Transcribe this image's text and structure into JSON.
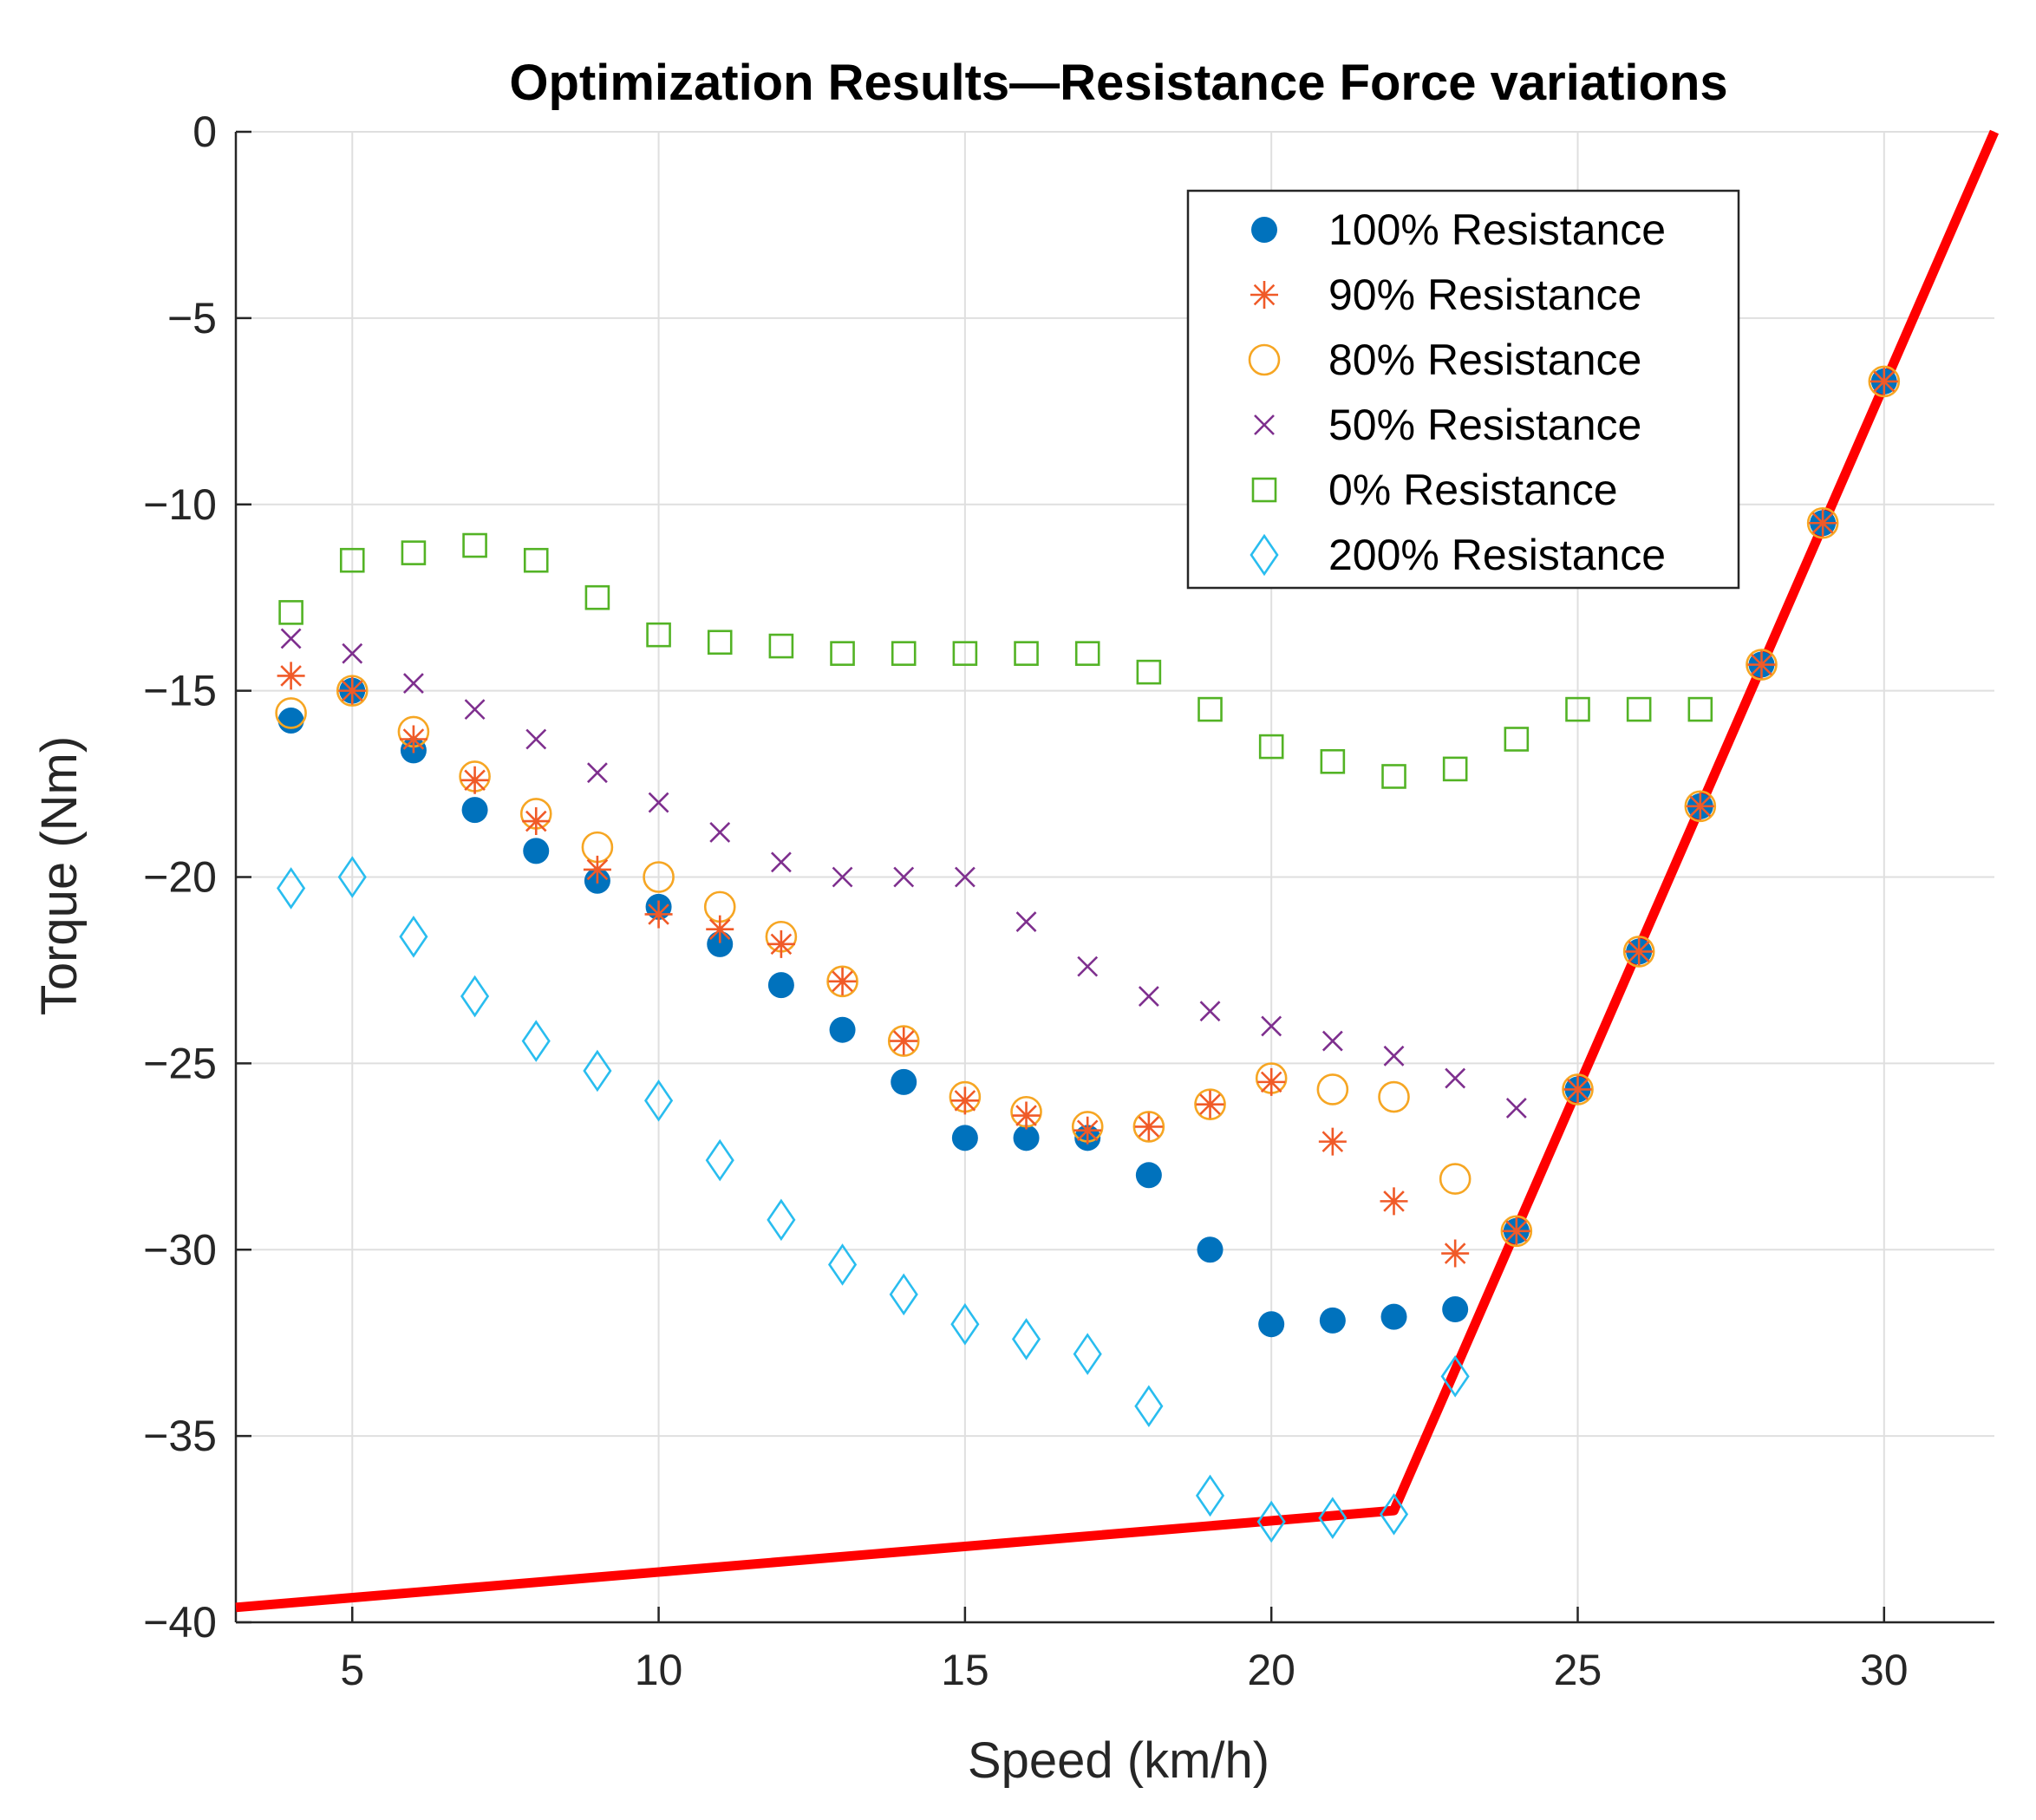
{
  "chart_data": {
    "type": "scatter",
    "title": "Optimization Results—Resistance Force variations",
    "xlabel": "Speed (km/h)",
    "ylabel": "Torque (Nm)",
    "xlim": [
      3.1,
      31.8
    ],
    "ylim": [
      -40,
      0
    ],
    "xticks": [
      5,
      10,
      15,
      20,
      25,
      30
    ],
    "yticks": [
      0,
      -5,
      -10,
      -15,
      -20,
      -25,
      -30,
      -35,
      -40
    ],
    "xtick_labels": [
      "5",
      "10",
      "15",
      "20",
      "25",
      "30"
    ],
    "ytick_labels": [
      "0",
      "−5",
      "−10",
      "−15",
      "−20",
      "−25",
      "−30",
      "−35",
      "−40"
    ],
    "grid": true,
    "legend_position": "top-right",
    "boundary_line": {
      "color": "#ff0000",
      "x": [
        3.1,
        22,
        31.8
      ],
      "y": [
        -39.6,
        -37.0,
        0
      ]
    },
    "series": [
      {
        "name": "100% Resistance",
        "marker": "filled-circle",
        "color": "#0072bd",
        "x": [
          4,
          5,
          6,
          7,
          8,
          9,
          10,
          11,
          12,
          13,
          14,
          15,
          16,
          17,
          18,
          19,
          20,
          21,
          22,
          23,
          24,
          25,
          26,
          27,
          28,
          29,
          30
        ],
        "y": [
          -15.8,
          -15.0,
          -16.6,
          -18.2,
          -19.3,
          -20.1,
          -20.8,
          -21.8,
          -22.9,
          -24.1,
          -25.5,
          -27.0,
          -27.0,
          -27.0,
          -28.0,
          -30.0,
          -32.0,
          -31.9,
          -31.8,
          -31.6,
          -29.5,
          -25.7,
          -22.0,
          -18.1,
          -14.3,
          -10.5,
          -6.7
        ]
      },
      {
        "name": "90% Resistance",
        "marker": "asterisk",
        "color": "#f05a28",
        "x": [
          4,
          5,
          6,
          7,
          8,
          9,
          10,
          11,
          12,
          13,
          14,
          15,
          16,
          17,
          18,
          19,
          20,
          21,
          22,
          23,
          24,
          25,
          26,
          27,
          28,
          29,
          30
        ],
        "y": [
          -14.6,
          -15.0,
          -16.3,
          -17.4,
          -18.5,
          -19.8,
          -21.0,
          -21.4,
          -21.8,
          -22.8,
          -24.4,
          -26.0,
          -26.4,
          -26.8,
          -26.7,
          -26.1,
          -25.5,
          -27.1,
          -28.7,
          -30.1,
          -29.5,
          -25.7,
          -22.0,
          -18.1,
          -14.3,
          -10.5,
          -6.7
        ]
      },
      {
        "name": "80% Resistance",
        "marker": "open-circle",
        "color": "#f6a623",
        "x": [
          4,
          5,
          6,
          7,
          8,
          9,
          10,
          11,
          12,
          13,
          14,
          15,
          16,
          17,
          18,
          19,
          20,
          21,
          22,
          23,
          24,
          25,
          26,
          27,
          28,
          29,
          30
        ],
        "y": [
          -15.6,
          -15.0,
          -16.1,
          -17.3,
          -18.3,
          -19.2,
          -20.0,
          -20.8,
          -21.6,
          -22.8,
          -24.4,
          -25.9,
          -26.3,
          -26.7,
          -26.7,
          -26.1,
          -25.4,
          -25.7,
          -25.9,
          -28.1,
          -29.5,
          -25.7,
          -22.0,
          -18.1,
          -14.3,
          -10.5,
          -6.7
        ]
      },
      {
        "name": "50% Resistance",
        "marker": "x",
        "color": "#7e2f8e",
        "x": [
          4,
          5,
          6,
          7,
          8,
          9,
          10,
          11,
          12,
          13,
          14,
          15,
          16,
          17,
          18,
          19,
          20,
          21,
          22,
          23,
          24
        ],
        "y": [
          -13.6,
          -14.0,
          -14.8,
          -15.5,
          -16.3,
          -17.2,
          -18.0,
          -18.8,
          -19.6,
          -20.0,
          -20.0,
          -20.0,
          -21.2,
          -22.4,
          -23.2,
          -23.6,
          -24.0,
          -24.4,
          -24.8,
          -25.4,
          -26.2
        ]
      },
      {
        "name": "0% Resistance",
        "marker": "open-square",
        "color": "#53b325",
        "x": [
          4,
          5,
          6,
          7,
          8,
          9,
          10,
          11,
          12,
          13,
          14,
          15,
          16,
          17,
          18,
          19,
          20,
          21,
          22,
          23,
          24,
          25,
          26,
          27
        ],
        "y": [
          -12.9,
          -11.5,
          -11.3,
          -11.1,
          -11.5,
          -12.5,
          -13.5,
          -13.7,
          -13.8,
          -14.0,
          -14.0,
          -14.0,
          -14.0,
          -14.0,
          -14.5,
          -15.5,
          -16.5,
          -16.9,
          -17.3,
          -17.1,
          -16.3,
          -15.5,
          -15.5,
          -15.5
        ]
      },
      {
        "name": "200% Resistance",
        "marker": "open-diamond",
        "color": "#29bdef",
        "x": [
          4,
          5,
          6,
          7,
          8,
          9,
          10,
          11,
          12,
          13,
          14,
          15,
          16,
          17,
          18,
          19,
          20,
          21,
          22,
          23
        ],
        "y": [
          -20.3,
          -20.0,
          -21.6,
          -23.2,
          -24.4,
          -25.2,
          -26.0,
          -27.6,
          -29.2,
          -30.4,
          -31.2,
          -32.0,
          -32.4,
          -32.8,
          -34.2,
          -36.6,
          -37.3,
          -37.2,
          -37.1,
          -33.4
        ]
      }
    ]
  }
}
